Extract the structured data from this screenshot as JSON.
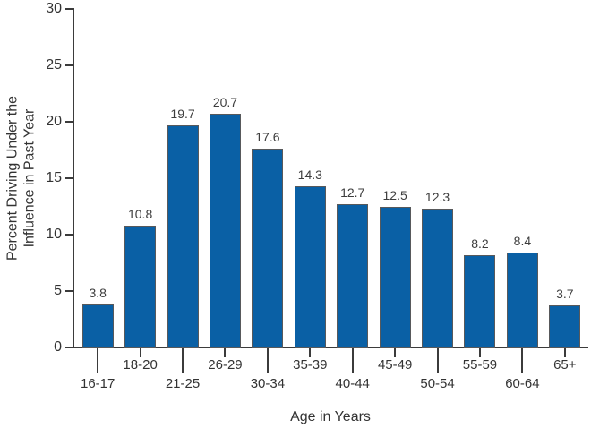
{
  "chart_data": {
    "type": "bar",
    "title": "",
    "xlabel": "Age in Years",
    "ylabel": "Percent Driving Under the Influence in Past Year",
    "ylabel_lines": [
      "Percent Driving Under the",
      "Influence in Past Year"
    ],
    "categories": [
      "16-17",
      "18-20",
      "21-25",
      "26-29",
      "30-34",
      "35-39",
      "40-44",
      "45-49",
      "50-54",
      "55-59",
      "60-64",
      "65+"
    ],
    "values": [
      3.8,
      10.8,
      19.7,
      20.7,
      17.6,
      14.3,
      12.7,
      12.5,
      12.3,
      8.2,
      8.4,
      3.7
    ],
    "value_labels": [
      "3.8",
      "10.8",
      "19.7",
      "20.7",
      "17.6",
      "14.3",
      "12.7",
      "12.5",
      "12.3",
      "8.2",
      "8.4",
      "3.7"
    ],
    "ylim": [
      0,
      30
    ],
    "yticks": [
      0,
      5,
      10,
      15,
      20,
      25,
      30
    ],
    "grid": false,
    "legend": "none",
    "xtick_labels_staggered": true,
    "colors": {
      "bar_fill": "#0a60a5",
      "bar_border": "#58595b",
      "axis": "#3b3b3b",
      "text": "#333333"
    }
  }
}
